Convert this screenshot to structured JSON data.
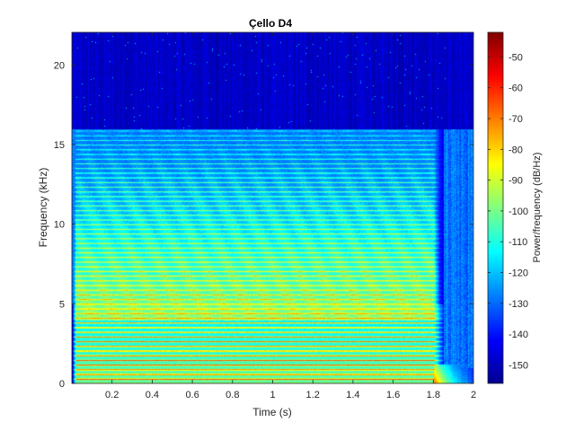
{
  "chart_data": {
    "type": "heatmap",
    "title": "Çello D4",
    "xlabel": "Time (s)",
    "ylabel": "Frequency (kHz)",
    "xlim": [
      0,
      2.0
    ],
    "ylim": [
      0,
      22.05
    ],
    "x_ticks": [
      0.2,
      0.4,
      0.6,
      0.8,
      1,
      1.2,
      1.4,
      1.6,
      1.8,
      2
    ],
    "y_ticks": [
      0,
      5,
      10,
      15,
      20
    ],
    "colorbar": {
      "label": "Power/frequency (dB/Hz)",
      "range": [
        -156,
        -42
      ],
      "ticks": [
        -50,
        -60,
        -70,
        -80,
        -90,
        -100,
        -110,
        -120,
        -130,
        -140,
        -150
      ],
      "colormap": "jet"
    },
    "features": {
      "note_duration_s": [
        0.0,
        1.8
      ],
      "fundamental_khz": 0.294,
      "strong_harmonics_below_khz": 3.5,
      "spectral_cutoff_khz": 16,
      "decay_start_s": 1.8
    },
    "grid": false
  }
}
